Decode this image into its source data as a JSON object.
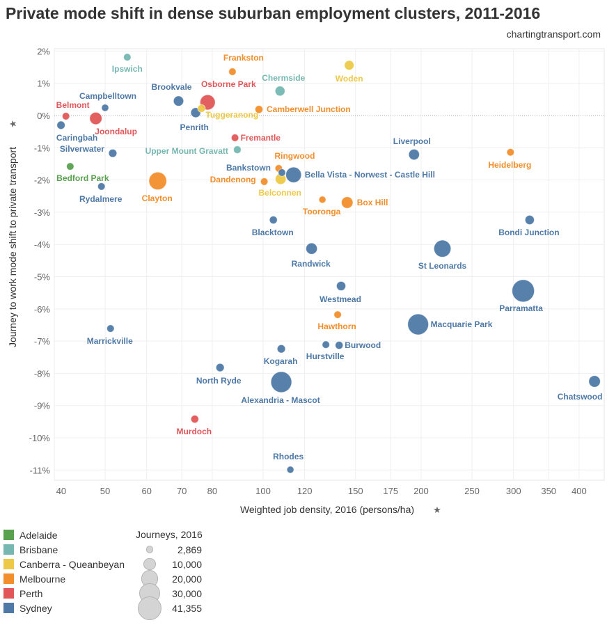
{
  "chart_data": {
    "type": "scatter",
    "title": "Private mode shift in dense suburban employment clusters, 2011-2016",
    "subtitle": "chartingtransport.com",
    "xlabel": "Weighted job density, 2016 (persons/ha)",
    "ylabel": "Journey to work mode shift to private transport",
    "x_scale": "log",
    "xlim": [
      40,
      446
    ],
    "ylim": [
      -11.3,
      2.1
    ],
    "x_ticks": [
      40,
      50,
      60,
      70,
      80,
      100,
      120,
      150,
      175,
      200,
      250,
      300,
      350,
      400
    ],
    "y_ticks": [
      2,
      1,
      0,
      -1,
      -2,
      -3,
      -4,
      -5,
      -6,
      -7,
      -8,
      -9,
      -10,
      -11
    ],
    "y_tick_format": "%",
    "grid": true,
    "zero_line": "dotted",
    "colors": {
      "Adelaide": "#59a14f",
      "Brisbane": "#76b7b2",
      "Canberra - Queanbeyan": "#edc948",
      "Melbourne": "#f28e2b",
      "Perth": "#e15759",
      "Sydney": "#4e79a7"
    },
    "legend_color_title": "",
    "legend_size_title": "Journeys, 2016",
    "legend_sizes": [
      2869,
      10000,
      20000,
      30000,
      41355
    ],
    "legend_size_labels": [
      "2,869",
      "10,000",
      "20,000",
      "30,000",
      "41,355"
    ],
    "legend_placement": "bottom-left",
    "points": [
      {
        "name": "Ipswich",
        "city": "Brisbane",
        "x": 55.1,
        "y": 1.81,
        "journeys": 4500
      },
      {
        "name": "Frankston",
        "city": "Melbourne",
        "x": 87.4,
        "y": 1.36,
        "journeys": 4500
      },
      {
        "name": "Woden",
        "city": "Canberra - Queanbeyan",
        "x": 145.9,
        "y": 1.56,
        "journeys": 7500
      },
      {
        "name": "Chermside",
        "city": "Brisbane",
        "x": 107.7,
        "y": 0.76,
        "journeys": 8000
      },
      {
        "name": "Brookvale",
        "city": "Sydney",
        "x": 69.0,
        "y": 0.45,
        "journeys": 8500
      },
      {
        "name": "Osborne Park",
        "city": "Perth",
        "x": 78.4,
        "y": 0.41,
        "journeys": 19000
      },
      {
        "name": "Campbelltown",
        "city": "Sydney",
        "x": 50.0,
        "y": 0.24,
        "journeys": 4200
      },
      {
        "name": "Tuggeranong",
        "city": "Canberra - Queanbeyan",
        "x": 76.3,
        "y": 0.22,
        "journeys": 5000
      },
      {
        "name": "Camberwell Junction",
        "city": "Melbourne",
        "x": 98.2,
        "y": 0.19,
        "journeys": 5000
      },
      {
        "name": "Belmont",
        "city": "Perth",
        "x": 42.1,
        "y": -0.02,
        "journeys": 4500
      },
      {
        "name": "Joondalup",
        "city": "Perth",
        "x": 48.0,
        "y": -0.09,
        "journeys": 12500
      },
      {
        "name": "Penrith",
        "city": "Sydney",
        "x": 74.4,
        "y": 0.09,
        "journeys": 8000
      },
      {
        "name": "Caringbah",
        "city": "Sydney",
        "x": 41.2,
        "y": -0.3,
        "journeys": 5500
      },
      {
        "name": "Fremantle",
        "city": "Perth",
        "x": 88.4,
        "y": -0.69,
        "journeys": 4500
      },
      {
        "name": "Silverwater",
        "city": "Sydney",
        "x": 51.7,
        "y": -1.17,
        "journeys": 5500
      },
      {
        "name": "Upper Mount Gravatt",
        "city": "Brisbane",
        "x": 89.3,
        "y": -1.06,
        "journeys": 4800
      },
      {
        "name": "Liverpool",
        "city": "Sydney",
        "x": 193.9,
        "y": -1.21,
        "journeys": 9500
      },
      {
        "name": "Heidelberg",
        "city": "Melbourne",
        "x": 296,
        "y": -1.14,
        "journeys": 4500
      },
      {
        "name": "Bedford Park",
        "city": "Adelaide",
        "x": 42.9,
        "y": -1.58,
        "journeys": 4500
      },
      {
        "name": "Ringwood",
        "city": "Melbourne",
        "x": 107.1,
        "y": -1.64,
        "journeys": 4500
      },
      {
        "name": "Bankstown",
        "city": "Sydney",
        "x": 108.6,
        "y": -1.77,
        "journeys": 4500
      },
      {
        "name": "Bella Vista - Norwest - Castle Hill",
        "city": "Sydney",
        "x": 114.3,
        "y": -1.84,
        "journeys": 20000
      },
      {
        "name": "Dandenong",
        "city": "Melbourne",
        "x": 100.5,
        "y": -2.05,
        "journeys": 4500
      },
      {
        "name": "Belconnen",
        "city": "Canberra - Queanbeyan",
        "x": 108.0,
        "y": -1.97,
        "journeys": 9500
      },
      {
        "name": "Rydalmere",
        "city": "Sydney",
        "x": 49.2,
        "y": -2.2,
        "journeys": 4500
      },
      {
        "name": "Clayton",
        "city": "Melbourne",
        "x": 63.0,
        "y": -2.03,
        "journeys": 26000
      },
      {
        "name": "Tooronga",
        "city": "Melbourne",
        "x": 129.7,
        "y": -2.61,
        "journeys": 4000
      },
      {
        "name": "Box Hill",
        "city": "Melbourne",
        "x": 144.6,
        "y": -2.7,
        "journeys": 11000
      },
      {
        "name": "Blacktown",
        "city": "Sydney",
        "x": 104.6,
        "y": -3.24,
        "journeys": 5000
      },
      {
        "name": "Bondi Junction",
        "city": "Sydney",
        "x": 322,
        "y": -3.24,
        "journeys": 7000
      },
      {
        "name": "Randwick",
        "city": "Sydney",
        "x": 123.7,
        "y": -4.13,
        "journeys": 10500
      },
      {
        "name": "St Leonards",
        "city": "Sydney",
        "x": 219.6,
        "y": -4.13,
        "journeys": 24000
      },
      {
        "name": "Westmead",
        "city": "Sydney",
        "x": 140.8,
        "y": -5.29,
        "journeys": 7000
      },
      {
        "name": "Parramatta",
        "city": "Sydney",
        "x": 313,
        "y": -5.44,
        "journeys": 41355
      },
      {
        "name": "Hawthorn",
        "city": "Melbourne",
        "x": 138.7,
        "y": -6.18,
        "journeys": 4500
      },
      {
        "name": "Macquarie Park",
        "city": "Sydney",
        "x": 197.4,
        "y": -6.48,
        "journeys": 36000
      },
      {
        "name": "Marrickville",
        "city": "Sydney",
        "x": 51.2,
        "y": -6.61,
        "journeys": 4500
      },
      {
        "name": "Hurstville",
        "city": "Sydney",
        "x": 131.7,
        "y": -7.11,
        "journeys": 4500
      },
      {
        "name": "Burwood",
        "city": "Sydney",
        "x": 139.6,
        "y": -7.13,
        "journeys": 5000
      },
      {
        "name": "Kogarah",
        "city": "Sydney",
        "x": 108.3,
        "y": -7.24,
        "journeys": 5500
      },
      {
        "name": "North Ryde",
        "city": "Sydney",
        "x": 82.8,
        "y": -7.82,
        "journeys": 5500
      },
      {
        "name": "Alexandria - Mascot",
        "city": "Sydney",
        "x": 108.3,
        "y": -8.27,
        "journeys": 36000
      },
      {
        "name": "Chatswood",
        "city": "Sydney",
        "x": 428,
        "y": -8.25,
        "journeys": 11000
      },
      {
        "name": "Murdoch",
        "city": "Perth",
        "x": 74.1,
        "y": -9.42,
        "journeys": 5000
      },
      {
        "name": "Rhodes",
        "city": "Sydney",
        "x": 112.7,
        "y": -10.99,
        "journeys": 4000
      }
    ]
  },
  "legend": {
    "cities": [
      "Adelaide",
      "Brisbane",
      "Canberra - Queanbeyan",
      "Melbourne",
      "Perth",
      "Sydney"
    ]
  },
  "icons": {
    "axis_pin": "pin-icon"
  }
}
